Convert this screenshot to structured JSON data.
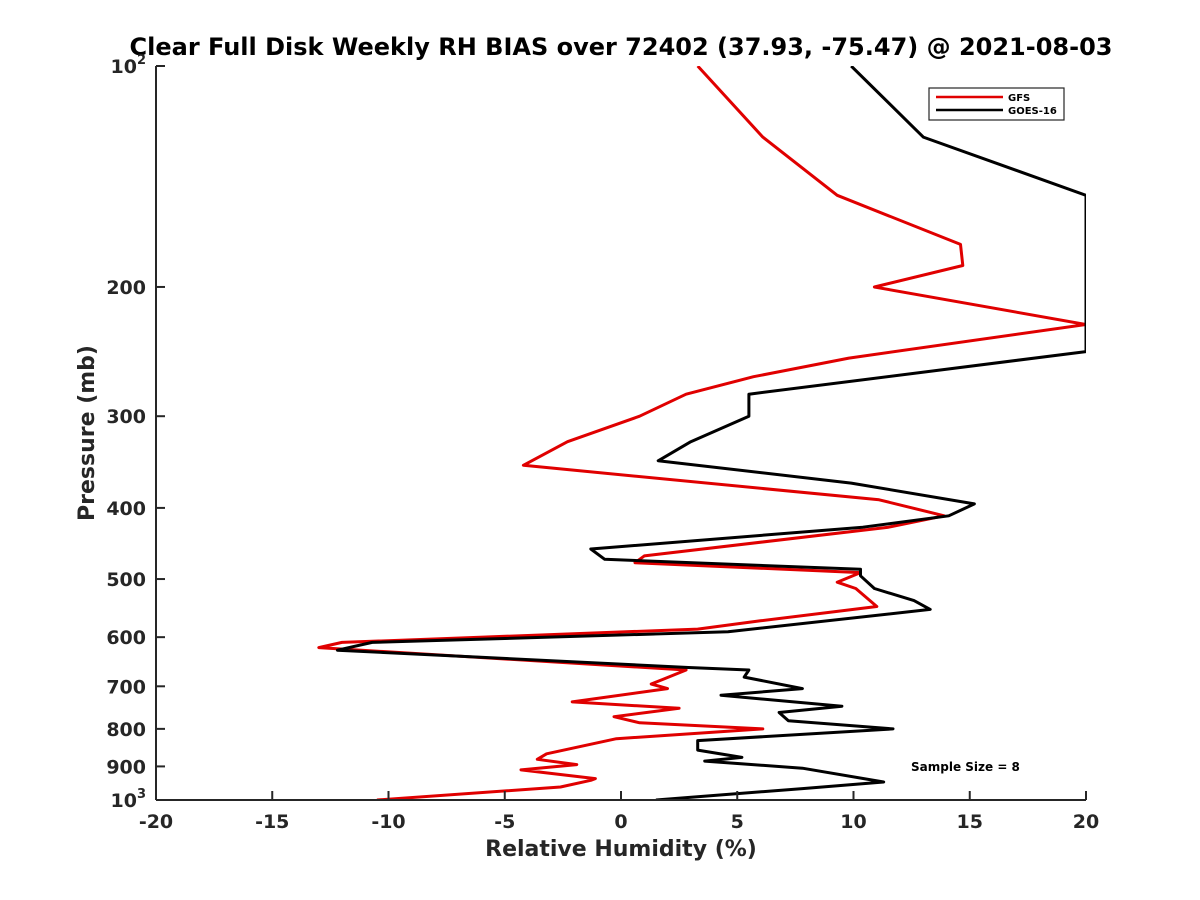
{
  "chart_data": {
    "type": "line",
    "title": "Clear Full Disk Weekly RH BIAS over 72402 (37.93, -75.47) @ 2021-08-03",
    "xlabel": "Relative Humidity (%)",
    "ylabel": "Pressure (mb)",
    "xlim": [
      -20,
      20
    ],
    "ylim": [
      100,
      1000
    ],
    "yscale": "log",
    "y_direction": "reversed",
    "x_ticks": [
      -20,
      -15,
      -10,
      -5,
      0,
      5,
      10,
      15,
      20
    ],
    "x_tick_labels": [
      "-20",
      "-15",
      "-10",
      "-5",
      "0",
      "5",
      "10",
      "15",
      "20"
    ],
    "y_ticks": [
      200,
      300,
      400,
      500,
      600,
      700,
      800,
      900
    ],
    "y_tick_labels": [
      "200",
      "300",
      "400",
      "500",
      "600",
      "700",
      "800",
      "900"
    ],
    "y_tick_exp": [
      {
        "value": 100,
        "base": "10",
        "exp": "2"
      },
      {
        "value": 1000,
        "base": "10",
        "exp": "3"
      }
    ],
    "grid": false,
    "legend_position": "top-right",
    "annotation": "Sample Size = 8",
    "series": [
      {
        "name": "GFS",
        "color": "#e00000",
        "points": [
          [
            3.3,
            100
          ],
          [
            6.1,
            125
          ],
          [
            9.3,
            150
          ],
          [
            14.6,
            175
          ],
          [
            14.7,
            187
          ],
          [
            10.9,
            200
          ],
          [
            20.0,
            225
          ],
          [
            9.8,
            250
          ],
          [
            5.7,
            265
          ],
          [
            2.8,
            280
          ],
          [
            0.8,
            300
          ],
          [
            -2.3,
            325
          ],
          [
            -4.2,
            350
          ],
          [
            11.1,
            390
          ],
          [
            13.9,
            410
          ],
          [
            11.5,
            425
          ],
          [
            1.0,
            465
          ],
          [
            0.6,
            475
          ],
          [
            10.3,
            490
          ],
          [
            9.3,
            505
          ],
          [
            10.1,
            515
          ],
          [
            11.0,
            545
          ],
          [
            6.0,
            570
          ],
          [
            3.3,
            585
          ],
          [
            -12.0,
            610
          ],
          [
            -13.0,
            620
          ],
          [
            2.8,
            665
          ],
          [
            1.8,
            685
          ],
          [
            1.3,
            695
          ],
          [
            2.0,
            705
          ],
          [
            -2.1,
            735
          ],
          [
            2.5,
            750
          ],
          [
            -0.3,
            770
          ],
          [
            0.8,
            785
          ],
          [
            6.1,
            800
          ],
          [
            -0.2,
            825
          ],
          [
            -3.2,
            865
          ],
          [
            -3.6,
            880
          ],
          [
            -1.9,
            895
          ],
          [
            -4.3,
            910
          ],
          [
            -1.1,
            935
          ],
          [
            -1.3,
            940
          ],
          [
            -2.6,
            960
          ],
          [
            -10.5,
            1000
          ]
        ]
      },
      {
        "name": "GOES-16",
        "color": "#000000",
        "points": [
          [
            9.9,
            100
          ],
          [
            13.0,
            125
          ],
          [
            20.0,
            150
          ],
          [
            20.0,
            245
          ],
          [
            5.5,
            280
          ],
          [
            5.5,
            300
          ],
          [
            3.0,
            325
          ],
          [
            1.6,
            345
          ],
          [
            9.9,
            370
          ],
          [
            15.2,
            395
          ],
          [
            14.1,
            410
          ],
          [
            10.4,
            425
          ],
          [
            -1.3,
            455
          ],
          [
            -0.7,
            470
          ],
          [
            10.3,
            485
          ],
          [
            10.3,
            495
          ],
          [
            10.9,
            515
          ],
          [
            12.6,
            535
          ],
          [
            13.3,
            550
          ],
          [
            4.6,
            590
          ],
          [
            -10.7,
            610
          ],
          [
            -12.2,
            625
          ],
          [
            2.9,
            660
          ],
          [
            5.5,
            665
          ],
          [
            5.3,
            680
          ],
          [
            7.8,
            705
          ],
          [
            4.3,
            720
          ],
          [
            9.5,
            745
          ],
          [
            6.8,
            760
          ],
          [
            7.2,
            780
          ],
          [
            11.7,
            800
          ],
          [
            3.3,
            830
          ],
          [
            3.3,
            855
          ],
          [
            5.2,
            875
          ],
          [
            3.6,
            885
          ],
          [
            7.8,
            905
          ],
          [
            11.3,
            945
          ],
          [
            7.8,
            965
          ],
          [
            1.5,
            1000
          ]
        ]
      }
    ]
  }
}
